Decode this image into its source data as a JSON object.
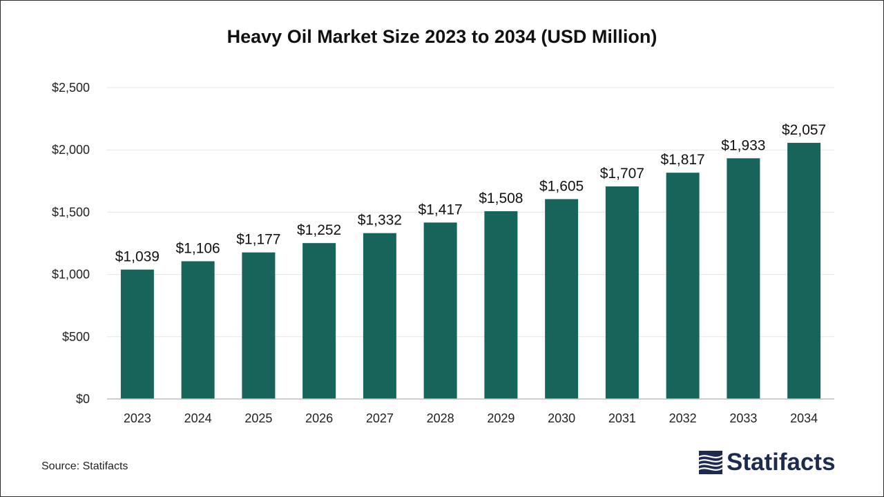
{
  "chart_data": {
    "type": "bar",
    "title": "Heavy Oil Market Size 2023 to 2034 (USD Million)",
    "categories": [
      "2023",
      "2024",
      "2025",
      "2026",
      "2027",
      "2028",
      "2029",
      "2030",
      "2031",
      "2032",
      "2033",
      "2034"
    ],
    "values": [
      1039,
      1106,
      1177,
      1252,
      1332,
      1417,
      1508,
      1605,
      1707,
      1817,
      1933,
      2057
    ],
    "data_labels": [
      "$1,039",
      "$1,106",
      "$1,177",
      "$1,252",
      "$1,332",
      "$1,417",
      "$1,508",
      "$1,605",
      "$1,707",
      "$1,817",
      "$1,933",
      "$2,057"
    ],
    "y_ticks": [
      0,
      500,
      1000,
      1500,
      2000,
      2500
    ],
    "y_tick_labels": [
      "$0",
      "$500",
      "$1,000",
      "$1,500",
      "$2,000",
      "$2,500"
    ],
    "ylim": [
      0,
      2500
    ],
    "xlabel": "",
    "ylabel": "",
    "grid": true,
    "legend": "none",
    "bar_color": "#17655a"
  },
  "footer": {
    "source": "Source: Statifacts",
    "logo_text": "Statifacts",
    "logo_color": "#1c2b4f"
  }
}
